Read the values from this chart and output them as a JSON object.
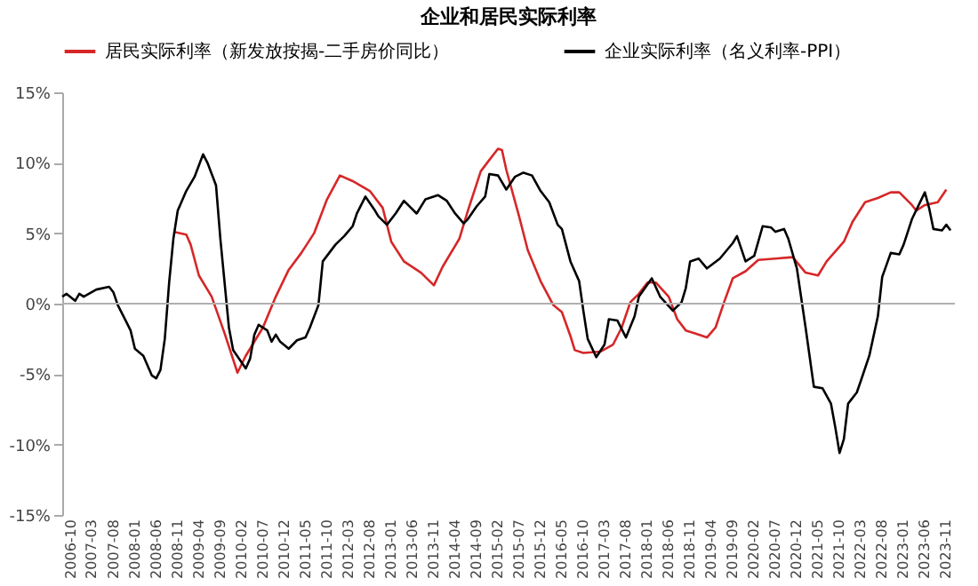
{
  "chart_data": {
    "type": "line",
    "title": "企业和居民实际利率",
    "xlim": [
      "2006-08",
      "2024-01"
    ],
    "xticks": [
      "2006-10",
      "2007-03",
      "2007-08",
      "2008-01",
      "2008-06",
      "2008-11",
      "2009-04",
      "2009-09",
      "2010-02",
      "2010-07",
      "2010-12",
      "2011-05",
      "2011-10",
      "2012-03",
      "2012-08",
      "2013-01",
      "2013-06",
      "2013-11",
      "2014-04",
      "2014-09",
      "2015-02",
      "2015-07",
      "2015-12",
      "2016-05",
      "2016-10",
      "2017-03",
      "2017-08",
      "2018-01",
      "2018-06",
      "2018-11",
      "2019-04",
      "2019-09",
      "2020-02",
      "2020-07",
      "2020-12",
      "2021-05",
      "2021-10",
      "2022-03",
      "2022-08",
      "2023-01",
      "2023-06",
      "2023-11"
    ],
    "ylim": [
      -15,
      15
    ],
    "yticks": [
      {
        "value": -15,
        "label": "-15%"
      },
      {
        "value": -10,
        "label": "-10%"
      },
      {
        "value": -5,
        "label": "-5%"
      },
      {
        "value": 0,
        "label": "0%"
      },
      {
        "value": 5,
        "label": "5%"
      },
      {
        "value": 10,
        "label": "10%"
      },
      {
        "value": 15,
        "label": "15%"
      }
    ],
    "grid": false,
    "legend": "top",
    "marker": "none",
    "line_style": "solid",
    "ref_lines": [
      {
        "axis": "y",
        "value": 0,
        "color": "#b0b0b0"
      }
    ],
    "series": [
      {
        "name": "居民实际利率（新发放按揭-二手房价同比）",
        "color": "#d62728",
        "x": [
          "2008-10",
          "2009-01",
          "2009-02",
          "2009-04",
          "2009-07",
          "2009-10",
          "2010-01",
          "2010-03",
          "2010-07",
          "2010-10",
          "2011-01",
          "2011-04",
          "2011-07",
          "2011-10",
          "2012-01",
          "2012-04",
          "2012-08",
          "2012-11",
          "2013-01",
          "2013-04",
          "2013-08",
          "2013-11",
          "2014-01",
          "2014-05",
          "2014-07",
          "2014-10",
          "2014-12",
          "2015-02",
          "2015-03",
          "2015-04",
          "2015-07",
          "2015-09",
          "2015-12",
          "2016-03",
          "2016-05",
          "2016-07",
          "2016-08",
          "2016-10",
          "2017-02",
          "2017-05",
          "2017-07",
          "2017-09",
          "2017-11",
          "2018-01",
          "2018-03",
          "2018-06",
          "2018-08",
          "2018-10",
          "2018-12",
          "2019-03",
          "2019-05",
          "2019-07",
          "2019-09",
          "2019-12",
          "2020-03",
          "2020-07",
          "2020-11",
          "2021-02",
          "2021-05",
          "2021-07",
          "2021-11",
          "2022-01",
          "2022-04",
          "2022-07",
          "2022-10",
          "2022-12",
          "2023-03",
          "2023-04",
          "2023-06",
          "2023-09",
          "2023-11"
        ],
        "values": [
          5.1,
          4.9,
          4.2,
          2.0,
          0.5,
          -2.1,
          -4.9,
          -3.7,
          -1.7,
          0.5,
          2.4,
          3.6,
          5.0,
          7.4,
          9.1,
          8.7,
          8.0,
          6.8,
          4.4,
          3.0,
          2.2,
          1.3,
          2.6,
          4.6,
          6.6,
          9.4,
          10.2,
          11.0,
          10.9,
          9.5,
          6.2,
          3.8,
          1.6,
          -0.1,
          -0.6,
          -2.3,
          -3.3,
          -3.5,
          -3.4,
          -2.9,
          -1.7,
          0.1,
          0.7,
          1.5,
          1.5,
          0.5,
          -1.1,
          -1.9,
          -2.1,
          -2.4,
          -1.7,
          0.1,
          1.8,
          2.3,
          3.1,
          3.2,
          3.3,
          2.2,
          2.0,
          3.0,
          4.4,
          5.8,
          7.2,
          7.5,
          7.9,
          7.9,
          7.0,
          6.6,
          7.0,
          7.2,
          8.1
        ]
      },
      {
        "name": "企业实际利率（名义利率-PPI）",
        "color": "#000000",
        "x": [
          "2006-08",
          "2006-09",
          "2006-11",
          "2006-12",
          "2007-01",
          "2007-04",
          "2007-07",
          "2007-08",
          "2007-09",
          "2007-11",
          "2007-12",
          "2008-01",
          "2008-03",
          "2008-05",
          "2008-06",
          "2008-07",
          "2008-08",
          "2008-09",
          "2008-10",
          "2008-11",
          "2009-01",
          "2009-03",
          "2009-05",
          "2009-06",
          "2009-08",
          "2009-09",
          "2009-11",
          "2009-12",
          "2010-03",
          "2010-04",
          "2010-05",
          "2010-06",
          "2010-08",
          "2010-09",
          "2010-10",
          "2010-11",
          "2011-01",
          "2011-03",
          "2011-05",
          "2011-06",
          "2011-08",
          "2011-09",
          "2011-12",
          "2012-02",
          "2012-04",
          "2012-05",
          "2012-07",
          "2012-09",
          "2012-10",
          "2012-12",
          "2013-02",
          "2013-04",
          "2013-07",
          "2013-09",
          "2013-12",
          "2014-02",
          "2014-04",
          "2014-06",
          "2014-07",
          "2014-09",
          "2014-11",
          "2014-12",
          "2015-02",
          "2015-04",
          "2015-06",
          "2015-08",
          "2015-10",
          "2015-12",
          "2016-02",
          "2016-04",
          "2016-05",
          "2016-07",
          "2016-09",
          "2016-10",
          "2016-11",
          "2017-01",
          "2017-03",
          "2017-04",
          "2017-06",
          "2017-08",
          "2017-10",
          "2017-11",
          "2018-02",
          "2018-04",
          "2018-07",
          "2018-09",
          "2018-10",
          "2018-11",
          "2019-01",
          "2019-03",
          "2019-06",
          "2019-09",
          "2019-10",
          "2019-12",
          "2020-02",
          "2020-04",
          "2020-06",
          "2020-07",
          "2020-09",
          "2020-10",
          "2020-12",
          "2021-02",
          "2021-04",
          "2021-06",
          "2021-08",
          "2021-09",
          "2021-10",
          "2021-11",
          "2021-12",
          "2022-02",
          "2022-03",
          "2022-05",
          "2022-07",
          "2022-08",
          "2022-10",
          "2022-12",
          "2023-01",
          "2023-03",
          "2023-06",
          "2023-07",
          "2023-08",
          "2023-10",
          "2023-11",
          "2023-12"
        ],
        "values": [
          0.5,
          0.7,
          0.2,
          0.7,
          0.5,
          1.0,
          1.2,
          0.8,
          -0.1,
          -1.3,
          -1.9,
          -3.2,
          -3.7,
          -5.1,
          -5.3,
          -4.7,
          -2.5,
          1.5,
          4.6,
          6.6,
          8.0,
          9.0,
          10.6,
          10.0,
          8.4,
          4.6,
          -1.7,
          -3.3,
          -4.6,
          -3.9,
          -2.2,
          -1.5,
          -1.9,
          -2.7,
          -2.2,
          -2.7,
          -3.2,
          -2.6,
          -2.4,
          -1.7,
          -0.1,
          3.0,
          4.2,
          4.8,
          5.5,
          6.4,
          7.6,
          6.7,
          6.2,
          5.6,
          6.4,
          7.3,
          6.4,
          7.4,
          7.7,
          7.3,
          6.4,
          5.7,
          6.0,
          6.9,
          7.6,
          9.2,
          9.1,
          8.1,
          9.0,
          9.3,
          9.1,
          8.0,
          7.2,
          5.6,
          5.3,
          3.0,
          1.6,
          -0.5,
          -2.5,
          -3.8,
          -2.9,
          -1.1,
          -1.2,
          -2.4,
          -0.9,
          0.5,
          1.8,
          0.5,
          -0.5,
          0.1,
          1.1,
          3.0,
          3.2,
          2.5,
          3.2,
          4.3,
          4.8,
          3.0,
          3.4,
          5.5,
          5.4,
          5.1,
          5.3,
          4.6,
          2.5,
          -1.7,
          -5.9,
          -6.0,
          -7.1,
          -8.8,
          -10.6,
          -9.6,
          -7.1,
          -6.3,
          -5.5,
          -3.7,
          -0.9,
          1.9,
          3.6,
          3.5,
          4.2,
          6.0,
          7.9,
          6.8,
          5.3,
          5.2,
          5.6,
          5.2
        ]
      }
    ]
  }
}
